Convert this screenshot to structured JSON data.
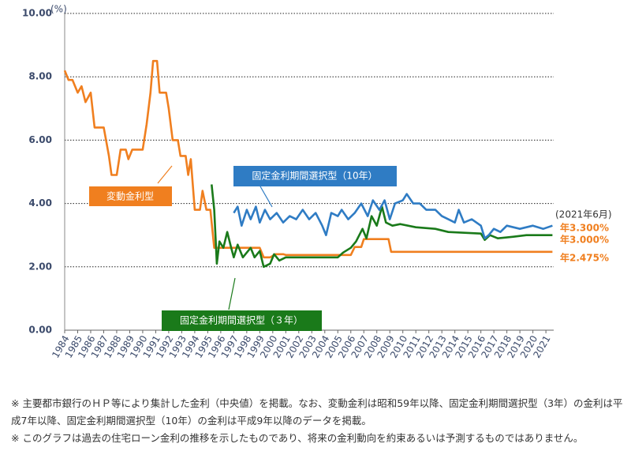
{
  "chart_data": {
    "type": "line",
    "y_unit": "(%)",
    "end_date": "(2021年6月)",
    "xlim": [
      1984,
      2021.6
    ],
    "xticks": [
      1984,
      1985,
      1986,
      1987,
      1988,
      1989,
      1990,
      1991,
      1992,
      1993,
      1994,
      1995,
      1996,
      1997,
      1998,
      1999,
      2000,
      2001,
      2002,
      2003,
      2004,
      2005,
      2006,
      2007,
      2008,
      2009,
      2010,
      2011,
      2012,
      2013,
      2014,
      2015,
      2016,
      2017,
      2018,
      2019,
      2020,
      2021
    ],
    "ylim": [
      0,
      10
    ],
    "yticks": [
      {
        "value": 0,
        "label": "0.00"
      },
      {
        "value": 2,
        "label": "2.00"
      },
      {
        "value": 4,
        "label": "4.00"
      },
      {
        "value": 6,
        "label": "6.00"
      },
      {
        "value": 8,
        "label": "8.00"
      },
      {
        "value": 10,
        "label": "10.00"
      }
    ],
    "grid": true,
    "series": [
      {
        "name": "変動金利型",
        "color": "#f07f1f",
        "end_label": "年2.475%",
        "x": [
          1984,
          1984.3,
          1984.6,
          1985,
          1985.3,
          1985.6,
          1986,
          1986.3,
          1987,
          1987.4,
          1987.6,
          1988,
          1988.3,
          1988.7,
          1988.9,
          1989.2,
          1990,
          1990.3,
          1990.6,
          1990.8,
          1991.1,
          1991.3,
          1991.8,
          1992,
          1992.3,
          1992.7,
          1992.9,
          1993.3,
          1993.5,
          1993.7,
          1994,
          1994.4,
          1994.6,
          1994.9,
          1995.2,
          1995.5,
          1999,
          1999.3,
          1999.8,
          2000.2,
          2000.8,
          2001,
          2006,
          2006.3,
          2006.8,
          2007,
          2008.9,
          2009.1,
          2021.5
        ],
        "values": [
          8.2,
          7.9,
          7.9,
          7.5,
          7.7,
          7.2,
          7.5,
          6.4,
          6.4,
          5.5,
          4.9,
          4.9,
          5.7,
          5.7,
          5.4,
          5.7,
          5.7,
          6.5,
          7.5,
          8.5,
          8.5,
          7.5,
          7.5,
          7.0,
          6.0,
          6.0,
          5.5,
          5.5,
          4.9,
          5.4,
          3.8,
          3.8,
          4.4,
          3.8,
          3.8,
          2.6,
          2.6,
          2.3,
          2.3,
          2.4,
          2.4,
          2.375,
          2.375,
          2.625,
          2.625,
          2.875,
          2.875,
          2.475,
          2.475
        ]
      },
      {
        "name": "固定金利期間選択型（３年）",
        "color": "#1a7a1a",
        "end_label": "年3.000%",
        "x": [
          1995.3,
          1995.5,
          1995.7,
          1995.9,
          1996.2,
          1996.5,
          1996.8,
          1997,
          1997.3,
          1997.7,
          1998.3,
          1998.6,
          1999,
          1999.3,
          1999.8,
          2000.1,
          2000.5,
          2001,
          2005,
          2005.4,
          2006,
          2006.4,
          2006.9,
          2007.2,
          2007.6,
          2008,
          2008.4,
          2008.7,
          2009.2,
          2009.8,
          2011,
          2012.5,
          2013.5,
          2016,
          2016.3,
          2016.7,
          2017.3,
          2018.5,
          2019.5,
          2021.5
        ],
        "values": [
          4.6,
          3.8,
          2.1,
          2.8,
          2.6,
          3.1,
          2.6,
          2.3,
          2.7,
          2.3,
          2.6,
          2.3,
          2.5,
          2.0,
          2.1,
          2.4,
          2.2,
          2.3,
          2.3,
          2.45,
          2.6,
          2.8,
          3.2,
          2.9,
          3.6,
          3.3,
          3.9,
          3.4,
          3.3,
          3.35,
          3.25,
          3.2,
          3.1,
          3.05,
          2.85,
          3.0,
          2.9,
          2.95,
          3.0,
          3.0
        ]
      },
      {
        "name": "固定金利期間選択型（10年）",
        "color": "#2f7cc4",
        "end_label": "年3.300%",
        "x": [
          1997,
          1997.3,
          1997.6,
          1998,
          1998.3,
          1998.7,
          1999,
          1999.4,
          1999.8,
          2000.3,
          2000.8,
          2001.3,
          2001.8,
          2002.3,
          2002.8,
          2003.3,
          2003.8,
          2004.1,
          2004.5,
          2005,
          2005.3,
          2005.8,
          2006.3,
          2006.8,
          2007.3,
          2007.7,
          2008.2,
          2008.6,
          2009,
          2009.4,
          2010,
          2010.3,
          2010.8,
          2011.3,
          2011.8,
          2012.5,
          2013,
          2013.5,
          2014,
          2014.3,
          2014.7,
          2015.3,
          2016,
          2016.3,
          2016.6,
          2017,
          2017.5,
          2018,
          2019,
          2020,
          2020.8,
          2021.5
        ],
        "values": [
          3.7,
          3.9,
          3.3,
          3.8,
          3.5,
          3.9,
          3.4,
          3.8,
          3.5,
          3.7,
          3.4,
          3.6,
          3.5,
          3.8,
          3.5,
          3.7,
          3.3,
          3.0,
          3.7,
          3.6,
          3.8,
          3.5,
          3.7,
          4.0,
          3.6,
          4.1,
          3.8,
          4.1,
          3.5,
          4.0,
          4.1,
          4.3,
          4.0,
          4.0,
          3.8,
          3.8,
          3.6,
          3.5,
          3.4,
          3.8,
          3.4,
          3.5,
          3.3,
          2.9,
          3.0,
          3.2,
          3.1,
          3.3,
          3.2,
          3.3,
          3.2,
          3.3
        ]
      }
    ]
  },
  "notes": [
    "※ 主要都市銀行のＨＰ等により集計した金利（中央値）を掲載。なお、変動金利は昭和59年以降、固定金利期間選択型（3年）の金利は平成7年以降、固定金利期間選択型（10年）の金利は平成9年以降のデータを掲載。",
    "※ このグラフは過去の住宅ローン金利の推移を示したものであり、将来の金利動向を約束あるいは予測するものではありません。"
  ]
}
